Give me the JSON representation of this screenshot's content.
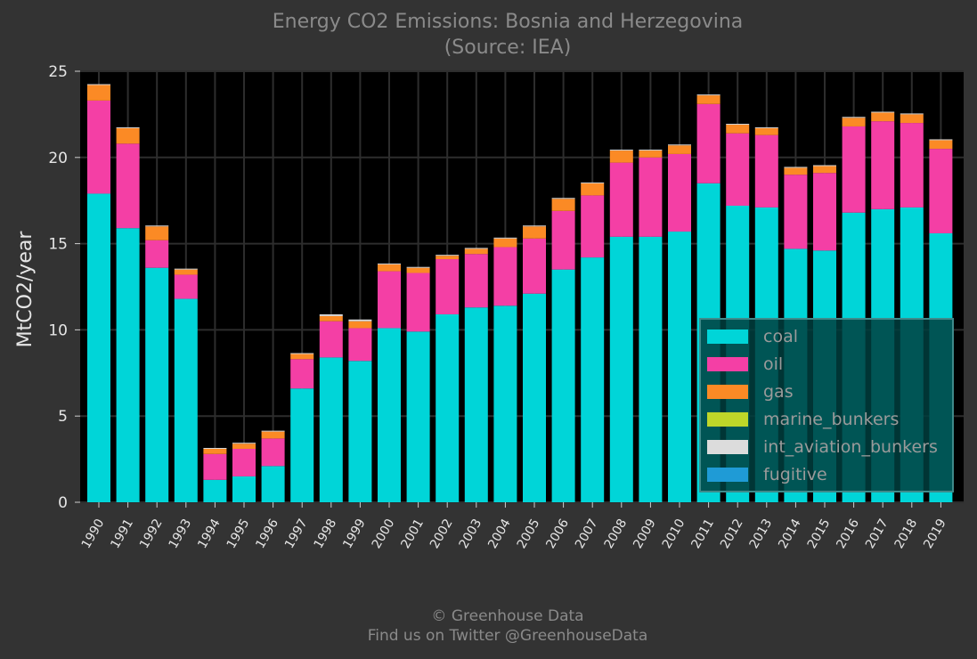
{
  "header": {
    "title_line1": "Energy CO2 Emissions: Bosnia and Herzegovina",
    "title_line2": "(Source: IEA)"
  },
  "footer": {
    "line1": "© Greenhouse Data",
    "line2": "Find us on Twitter @GreenhouseData"
  },
  "chart_data": {
    "type": "bar",
    "stacked": true,
    "ylabel": "MtCO2/year",
    "xlabel": "",
    "ylim": [
      0,
      25
    ],
    "yticks": [
      0,
      5,
      10,
      15,
      20,
      25
    ],
    "grid": true,
    "legend_position": "bottom-right",
    "categories": [
      "1990",
      "1991",
      "1992",
      "1993",
      "1994",
      "1995",
      "1996",
      "1997",
      "1998",
      "1999",
      "2000",
      "2001",
      "2002",
      "2003",
      "2004",
      "2005",
      "2006",
      "2007",
      "2008",
      "2009",
      "2010",
      "2011",
      "2012",
      "2013",
      "2014",
      "2015",
      "2016",
      "2017",
      "2018",
      "2019"
    ],
    "series": [
      {
        "name": "coal",
        "color": "#00d5d8",
        "values": [
          17.9,
          15.9,
          13.6,
          11.8,
          1.3,
          1.5,
          2.1,
          6.6,
          8.4,
          8.2,
          10.1,
          9.9,
          10.9,
          11.3,
          11.4,
          12.1,
          13.5,
          14.2,
          15.4,
          15.4,
          15.7,
          18.5,
          17.2,
          17.1,
          14.7,
          14.6,
          16.8,
          17.0,
          17.1,
          15.6
        ]
      },
      {
        "name": "oil",
        "color": "#f43fa5",
        "values": [
          5.4,
          4.9,
          1.6,
          1.4,
          1.5,
          1.6,
          1.6,
          1.7,
          2.1,
          1.9,
          3.3,
          3.4,
          3.2,
          3.1,
          3.4,
          3.2,
          3.4,
          3.6,
          4.3,
          4.6,
          4.5,
          4.6,
          4.2,
          4.2,
          4.3,
          4.5,
          5.0,
          5.1,
          4.9,
          4.9
        ]
      },
      {
        "name": "gas",
        "color": "#fb8a25",
        "values": [
          0.9,
          0.9,
          0.8,
          0.3,
          0.3,
          0.3,
          0.4,
          0.3,
          0.3,
          0.4,
          0.4,
          0.3,
          0.2,
          0.3,
          0.5,
          0.7,
          0.7,
          0.7,
          0.7,
          0.4,
          0.5,
          0.5,
          0.5,
          0.4,
          0.4,
          0.4,
          0.5,
          0.5,
          0.5,
          0.5
        ]
      },
      {
        "name": "marine_bunkers",
        "color": "#bfd629",
        "values": [
          0,
          0,
          0,
          0,
          0,
          0,
          0,
          0,
          0,
          0,
          0,
          0,
          0,
          0,
          0,
          0,
          0,
          0,
          0,
          0,
          0,
          0,
          0,
          0,
          0,
          0,
          0,
          0,
          0,
          0
        ]
      },
      {
        "name": "int_aviation_bunkers",
        "color": "#dcdcdc",
        "values": [
          0.05,
          0.05,
          0.05,
          0.05,
          0.05,
          0.05,
          0.05,
          0.05,
          0.1,
          0.1,
          0.05,
          0.05,
          0.05,
          0.05,
          0.05,
          0.05,
          0.05,
          0.05,
          0.05,
          0.05,
          0.05,
          0.05,
          0.05,
          0.05,
          0.05,
          0.05,
          0.05,
          0.05,
          0.05,
          0.05
        ]
      },
      {
        "name": "fugitive",
        "color": "#1f9bd6",
        "values": [
          0,
          0,
          0,
          0,
          0,
          0,
          0,
          0,
          0,
          0,
          0,
          0,
          0,
          0,
          0,
          0,
          0,
          0,
          0,
          0,
          0,
          0,
          0,
          0,
          0,
          0,
          0,
          0,
          0,
          0
        ]
      }
    ]
  }
}
